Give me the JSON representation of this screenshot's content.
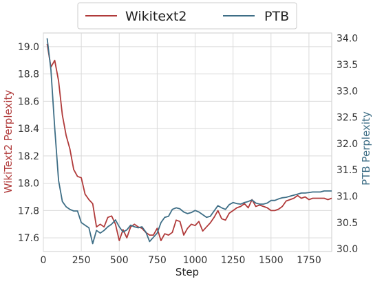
{
  "chart_data": {
    "type": "line",
    "xlabel": "Step",
    "ylabel_left": "WikiText2 Perplexity",
    "ylabel_right": "PTB Perplexity",
    "xlim": [
      0,
      1900
    ],
    "ylim_left": [
      17.5,
      19.1
    ],
    "ylim_right": [
      29.95,
      34.1
    ],
    "x_ticks": [
      0,
      250,
      500,
      750,
      1000,
      1250,
      1500,
      1750
    ],
    "y_ticks_left": [
      17.6,
      17.8,
      18.0,
      18.2,
      18.4,
      18.6,
      18.8,
      19.0
    ],
    "y_ticks_right": [
      30.0,
      30.5,
      31.0,
      31.5,
      32.0,
      32.5,
      33.0,
      33.5,
      34.0
    ],
    "grid": true,
    "legend_position": "top-center",
    "series": [
      {
        "name": "Wikitext2",
        "axis": "left",
        "color": "#b03a3a",
        "x": [
          25,
          50,
          75,
          100,
          125,
          150,
          175,
          200,
          225,
          250,
          275,
          300,
          325,
          350,
          375,
          400,
          425,
          450,
          475,
          500,
          525,
          550,
          575,
          600,
          625,
          650,
          675,
          700,
          725,
          750,
          775,
          800,
          825,
          850,
          875,
          900,
          925,
          950,
          975,
          1000,
          1025,
          1050,
          1075,
          1100,
          1125,
          1150,
          1175,
          1200,
          1225,
          1250,
          1275,
          1300,
          1325,
          1350,
          1375,
          1400,
          1425,
          1450,
          1475,
          1500,
          1525,
          1550,
          1575,
          1600,
          1625,
          1650,
          1675,
          1700,
          1725,
          1750,
          1775,
          1800,
          1825,
          1850,
          1875,
          1900
        ],
        "y": [
          19.02,
          18.85,
          18.9,
          18.75,
          18.5,
          18.35,
          18.25,
          18.1,
          18.05,
          18.04,
          17.92,
          17.88,
          17.85,
          17.68,
          17.7,
          17.68,
          17.75,
          17.76,
          17.7,
          17.58,
          17.66,
          17.6,
          17.68,
          17.7,
          17.68,
          17.67,
          17.64,
          17.62,
          17.62,
          17.67,
          17.58,
          17.63,
          17.62,
          17.64,
          17.73,
          17.72,
          17.62,
          17.67,
          17.7,
          17.69,
          17.72,
          17.65,
          17.68,
          17.71,
          17.75,
          17.8,
          17.74,
          17.73,
          17.78,
          17.8,
          17.82,
          17.83,
          17.85,
          17.82,
          17.88,
          17.83,
          17.84,
          17.83,
          17.82,
          17.8,
          17.8,
          17.81,
          17.83,
          17.87,
          17.88,
          17.89,
          17.91,
          17.89,
          17.9,
          17.88,
          17.89,
          17.89,
          17.89,
          17.89,
          17.88,
          17.89
        ]
      },
      {
        "name": "PTB",
        "axis": "right",
        "color": "#3e6e86",
        "x": [
          25,
          50,
          75,
          100,
          125,
          150,
          175,
          200,
          225,
          250,
          275,
          300,
          325,
          350,
          375,
          400,
          425,
          450,
          475,
          500,
          525,
          550,
          575,
          600,
          625,
          650,
          675,
          700,
          725,
          750,
          775,
          800,
          825,
          850,
          875,
          900,
          925,
          950,
          975,
          1000,
          1025,
          1050,
          1075,
          1100,
          1125,
          1150,
          1175,
          1200,
          1225,
          1250,
          1275,
          1300,
          1325,
          1350,
          1375,
          1400,
          1425,
          1450,
          1475,
          1500,
          1525,
          1550,
          1575,
          1600,
          1625,
          1650,
          1675,
          1700,
          1725,
          1750,
          1775,
          1800,
          1825,
          1850,
          1875,
          1900
        ],
        "y": [
          34.0,
          33.4,
          32.3,
          31.3,
          30.9,
          30.8,
          30.75,
          30.72,
          30.72,
          30.5,
          30.45,
          30.4,
          30.1,
          30.35,
          30.3,
          30.35,
          30.42,
          30.47,
          30.55,
          30.42,
          30.32,
          30.36,
          30.45,
          30.42,
          30.4,
          30.42,
          30.32,
          30.14,
          30.22,
          30.3,
          30.5,
          30.6,
          30.62,
          30.75,
          30.78,
          30.76,
          30.7,
          30.67,
          30.69,
          30.73,
          30.7,
          30.65,
          30.6,
          30.62,
          30.72,
          30.82,
          30.78,
          30.75,
          30.84,
          30.88,
          30.86,
          30.85,
          30.88,
          30.9,
          30.93,
          30.87,
          30.85,
          30.85,
          30.87,
          30.92,
          30.92,
          30.95,
          30.97,
          30.98,
          31.0,
          31.02,
          31.04,
          31.06,
          31.06,
          31.07,
          31.08,
          31.08,
          31.08,
          31.1,
          31.1,
          31.1
        ]
      }
    ]
  }
}
